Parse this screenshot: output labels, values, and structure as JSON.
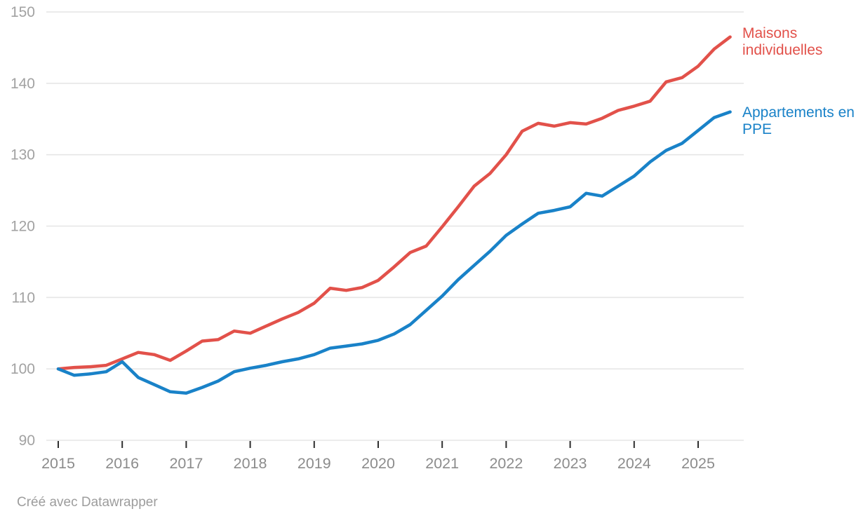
{
  "chart_data": {
    "type": "line",
    "title": "",
    "xlabel": "",
    "ylabel": "",
    "ylim": [
      90,
      150
    ],
    "y_ticks": [
      90,
      100,
      110,
      120,
      130,
      140,
      150
    ],
    "x_tick_labels": [
      "2015",
      "2016",
      "2017",
      "2018",
      "2019",
      "2020",
      "2021",
      "2022",
      "2023",
      "2024",
      "2025"
    ],
    "grid": "horizontal",
    "legend_position": "right-of-line-end",
    "quarters": [
      "2015-Q1",
      "2015-Q2",
      "2015-Q3",
      "2015-Q4",
      "2016-Q1",
      "2016-Q2",
      "2016-Q3",
      "2016-Q4",
      "2017-Q1",
      "2017-Q2",
      "2017-Q3",
      "2017-Q4",
      "2018-Q1",
      "2018-Q2",
      "2018-Q3",
      "2018-Q4",
      "2019-Q1",
      "2019-Q2",
      "2019-Q3",
      "2019-Q4",
      "2020-Q1",
      "2020-Q2",
      "2020-Q3",
      "2020-Q4",
      "2021-Q1",
      "2021-Q2",
      "2021-Q3",
      "2021-Q4",
      "2022-Q1",
      "2022-Q2",
      "2022-Q3",
      "2022-Q4",
      "2023-Q1",
      "2023-Q2",
      "2023-Q3",
      "2023-Q4",
      "2024-Q1",
      "2024-Q2",
      "2024-Q3",
      "2024-Q4",
      "2025-Q1",
      "2025-Q2",
      "2025-Q3"
    ],
    "series": [
      {
        "name": "Maisons individuelles",
        "color": "#e2514a",
        "values": [
          100,
          100.2,
          100.3,
          100.5,
          101.4,
          102.3,
          102.0,
          101.2,
          102.5,
          103.9,
          104.1,
          105.3,
          105.0,
          106.0,
          107.0,
          107.9,
          109.2,
          111.3,
          111.0,
          111.4,
          112.4,
          114.3,
          116.3,
          117.2,
          119.9,
          122.7,
          125.6,
          127.4,
          130.0,
          133.3,
          134.4,
          134.0,
          134.5,
          134.3,
          135.1,
          136.2,
          136.8,
          137.5,
          140.2,
          140.8,
          142.4,
          144.8,
          146.5
        ]
      },
      {
        "name": "Appartements en PPE",
        "color": "#1982c8",
        "values": [
          100,
          99.1,
          99.3,
          99.6,
          101.0,
          98.8,
          97.8,
          96.8,
          96.6,
          97.4,
          98.3,
          99.6,
          100.1,
          100.5,
          101.0,
          101.4,
          102.0,
          102.9,
          103.2,
          103.5,
          104.0,
          104.9,
          106.2,
          108.2,
          110.2,
          112.5,
          114.5,
          116.5,
          118.7,
          120.3,
          121.8,
          122.2,
          122.7,
          124.6,
          124.2,
          125.6,
          127.0,
          129.0,
          130.6,
          131.6,
          133.4,
          135.2,
          136.0
        ]
      }
    ]
  },
  "colors": {
    "grid_line": "#e6e6e6",
    "y_tick_label": "#a2a2a2",
    "x_tick_label": "#8c8c8c",
    "tick_mark": "#2f2f2f"
  },
  "footer": {
    "credit": "Créé avec Datawrapper"
  }
}
